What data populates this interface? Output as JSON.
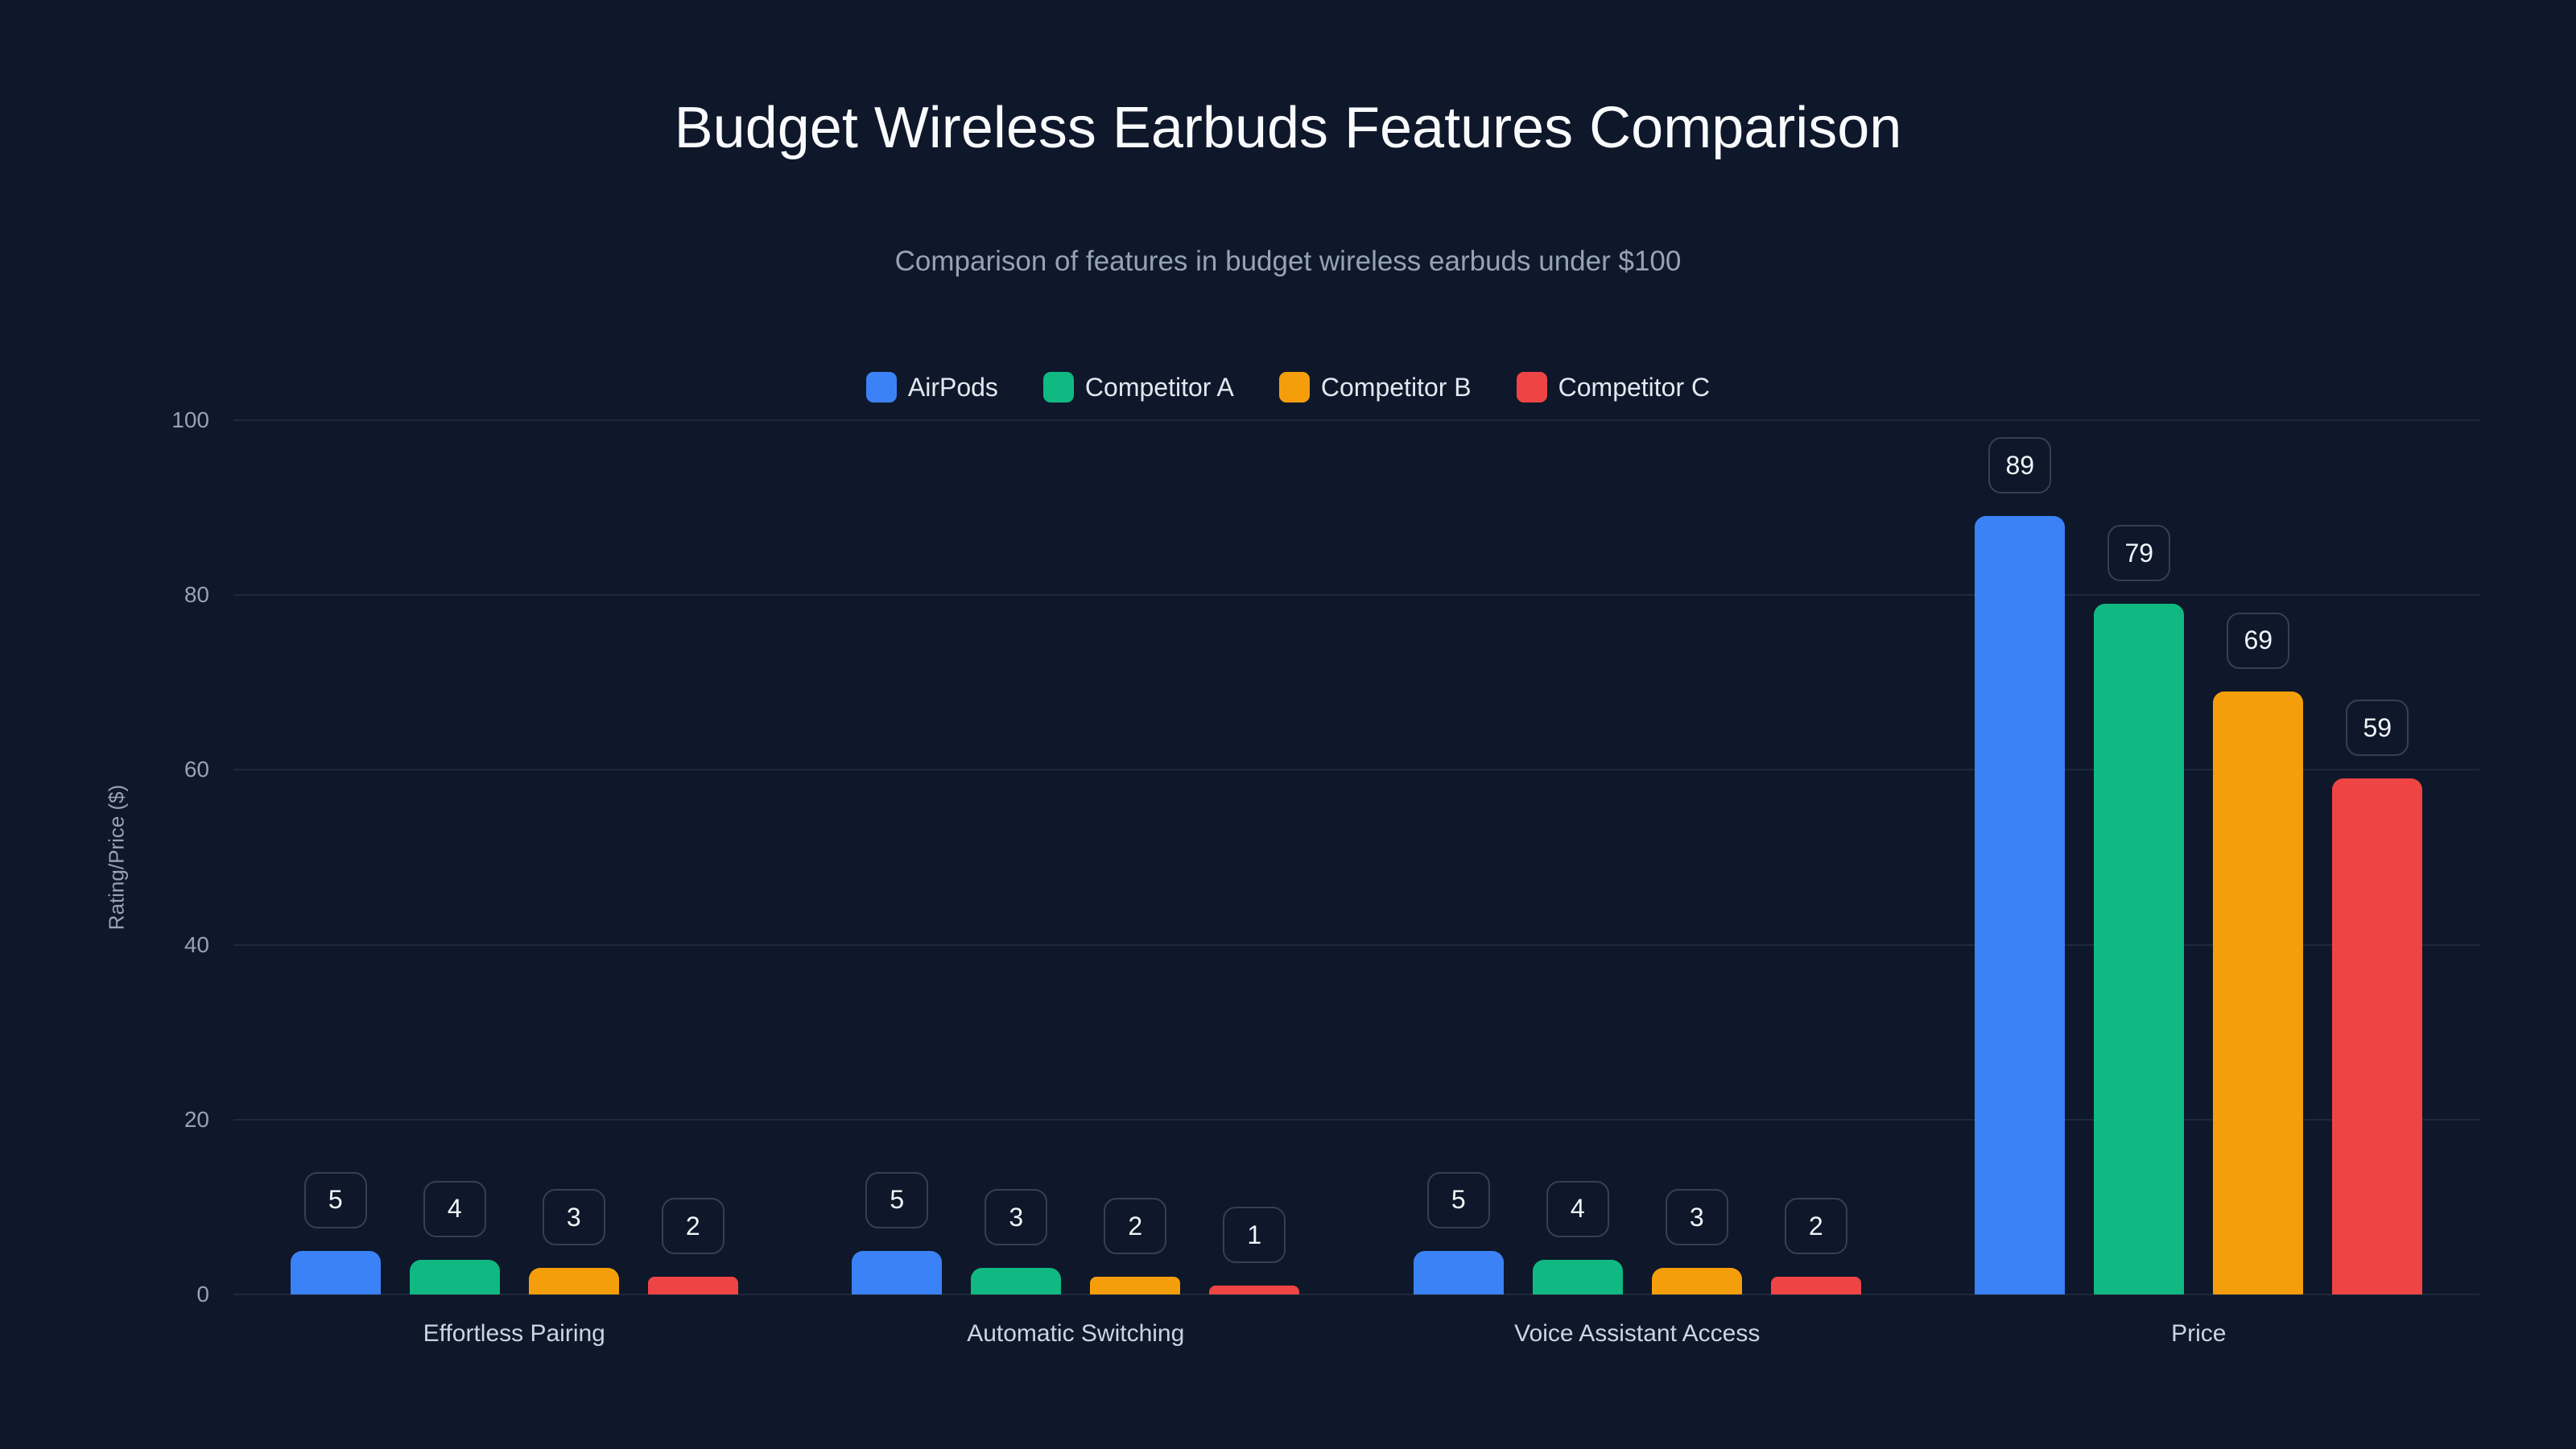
{
  "title": "Budget Wireless Earbuds Features Comparison",
  "subtitle": "Comparison of features in budget wireless earbuds under $100",
  "legend": [
    {
      "label": "AirPods",
      "color": "#3b82f6"
    },
    {
      "label": "Competitor A",
      "color": "#10b981"
    },
    {
      "label": "Competitor B",
      "color": "#f59e0b"
    },
    {
      "label": "Competitor C",
      "color": "#ef4444"
    }
  ],
  "axis": {
    "ylabel": "Rating/Price ($)",
    "yticks": [
      "0",
      "20",
      "40",
      "60",
      "80",
      "100"
    ]
  },
  "categories": [
    "Effortless Pairing",
    "Automatic Switching",
    "Voice Assistant Access",
    "Price"
  ],
  "chart_data": {
    "type": "bar",
    "title": "Budget Wireless Earbuds Features Comparison",
    "subtitle": "Comparison of features in budget wireless earbuds under $100",
    "xlabel": "",
    "ylabel": "Rating/Price ($)",
    "ylim": [
      0,
      100
    ],
    "grid": true,
    "legend_position": "top",
    "categories": [
      "Effortless Pairing",
      "Automatic Switching",
      "Voice Assistant Access",
      "Price"
    ],
    "series": [
      {
        "name": "AirPods",
        "color": "#3b82f6",
        "values": [
          5,
          5,
          5,
          89
        ]
      },
      {
        "name": "Competitor A",
        "color": "#10b981",
        "values": [
          4,
          3,
          4,
          79
        ]
      },
      {
        "name": "Competitor B",
        "color": "#f59e0b",
        "values": [
          3,
          2,
          3,
          69
        ]
      },
      {
        "name": "Competitor C",
        "color": "#ef4444",
        "values": [
          2,
          1,
          2,
          59
        ]
      }
    ]
  }
}
